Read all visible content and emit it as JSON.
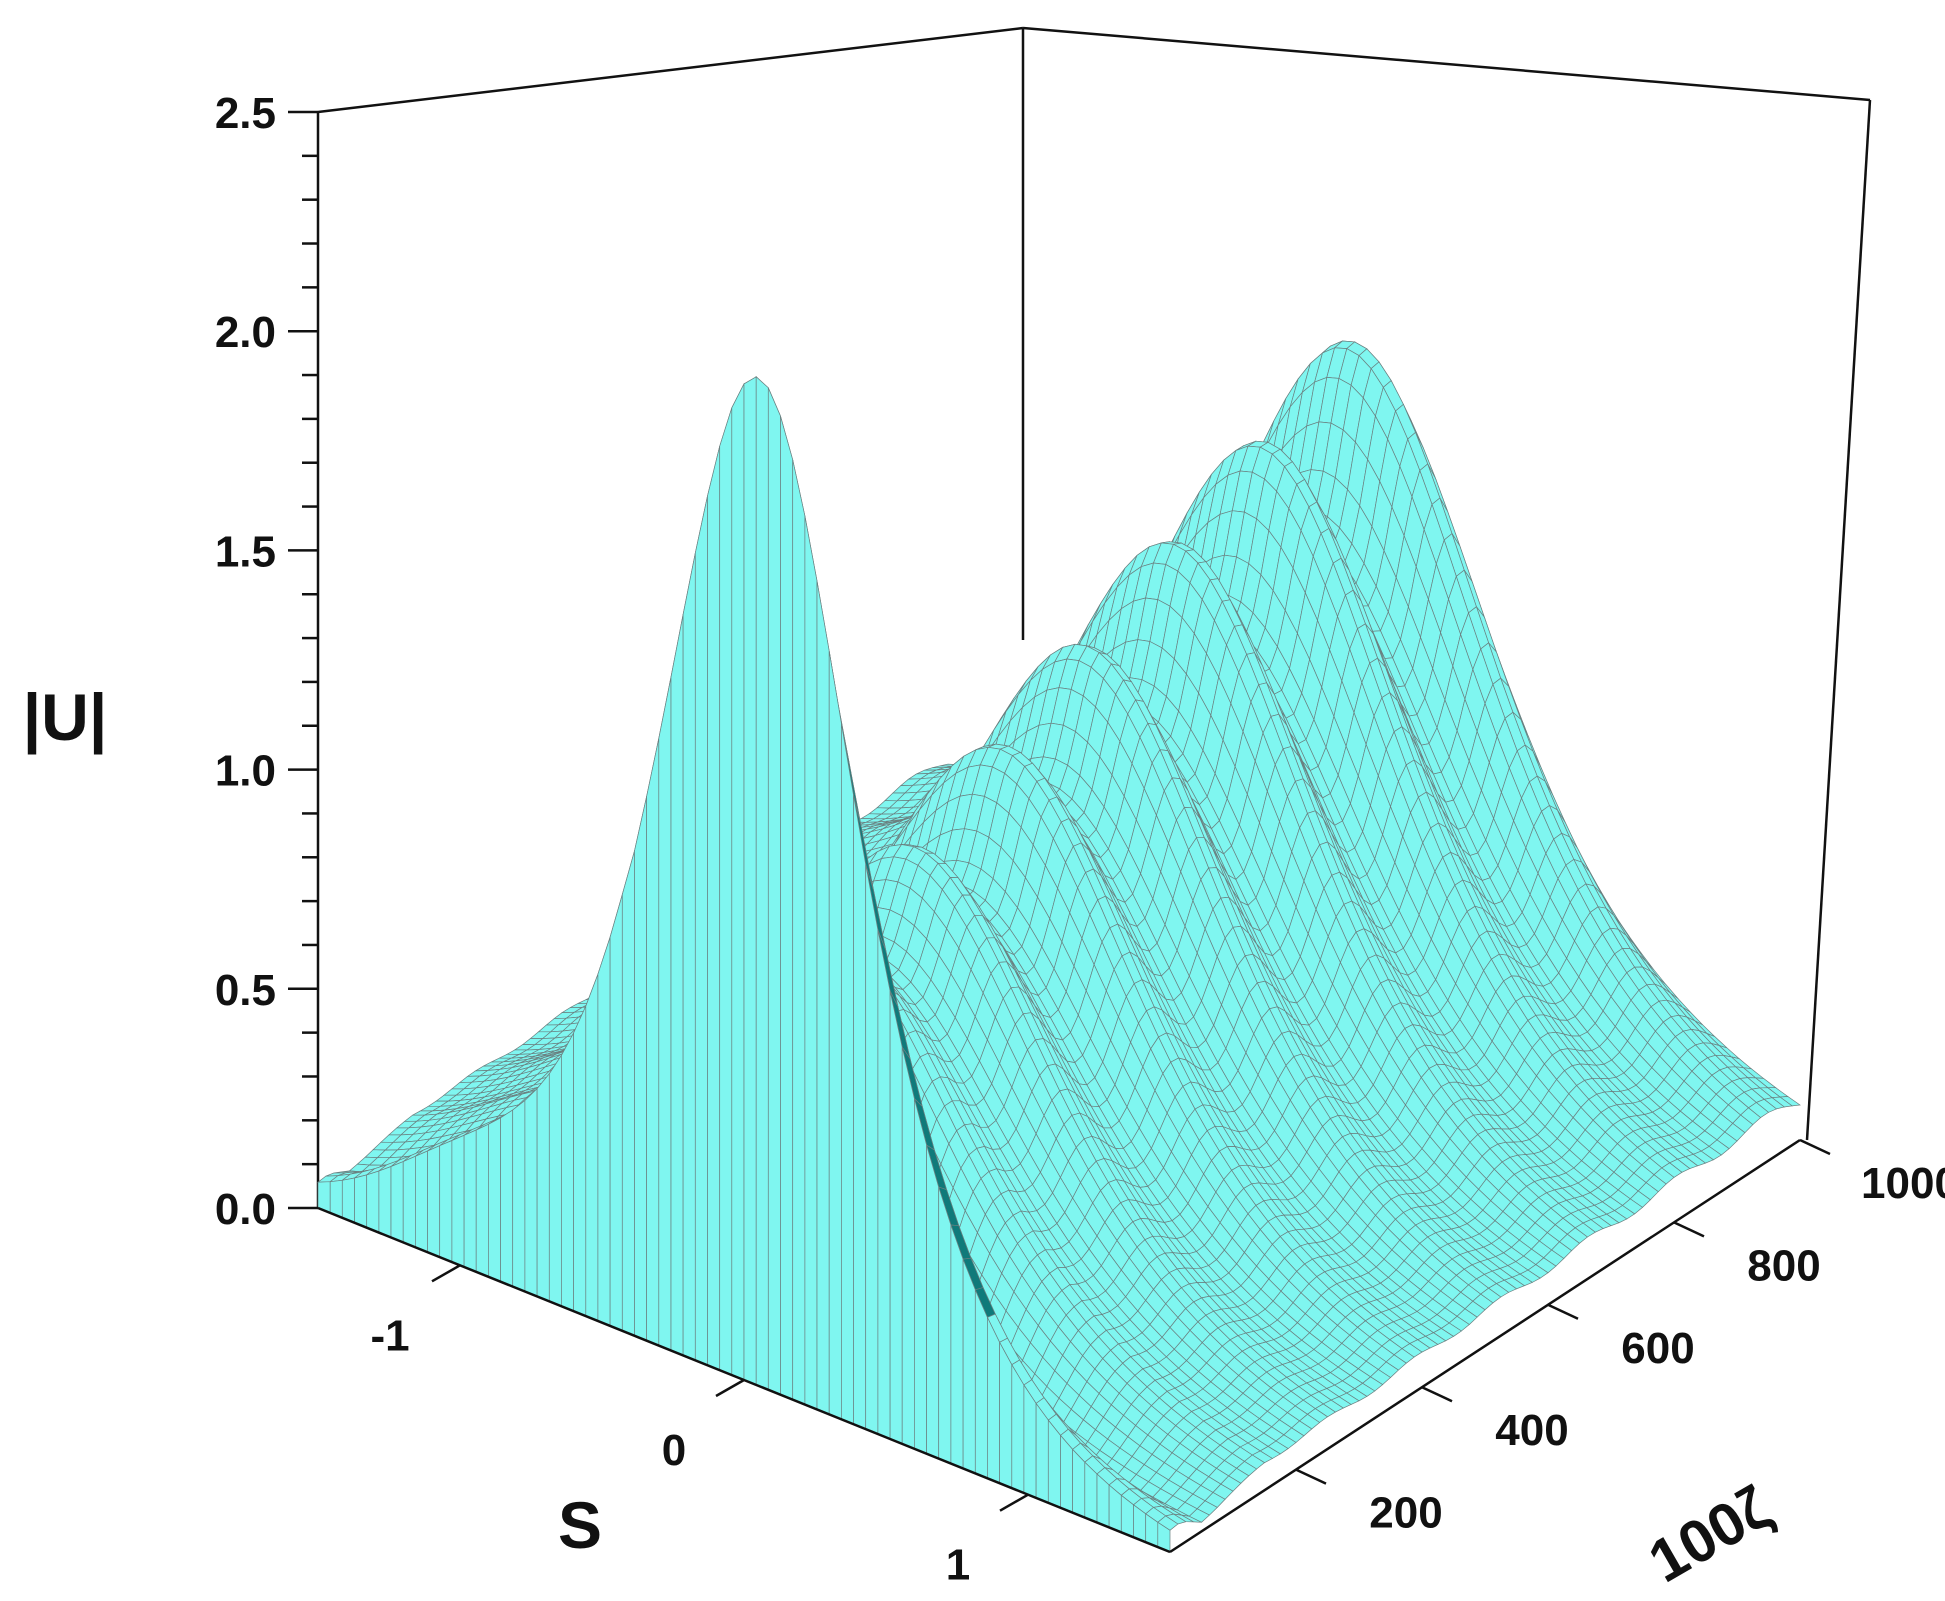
{
  "chart_data": {
    "type": "surface3d",
    "z_axis": {
      "label": "|U|",
      "range": [
        0,
        2.5
      ],
      "ticks": [
        0.0,
        0.5,
        1.0,
        1.5,
        2.0,
        2.5
      ],
      "tick_labels": [
        "0.0",
        "0.5",
        "1.0",
        "1.5",
        "2.0",
        "2.5"
      ]
    },
    "s_axis": {
      "label": "S",
      "range": [
        -1.5,
        1.5
      ],
      "ticks": [
        -1,
        0,
        1
      ],
      "tick_labels": [
        "-1",
        "0",
        "1"
      ]
    },
    "zeta_axis": {
      "label": "100ζ",
      "range": [
        0,
        1000
      ],
      "ticks": [
        200,
        400,
        600,
        800,
        1000
      ],
      "tick_labels": [
        "200",
        "400",
        "600",
        "800",
        "1000"
      ]
    },
    "surface_color": "#7ff6f0",
    "surface_shade_color": "#0f7a7a",
    "mesh_color": "#6a8080",
    "peak_ridge": {
      "s": 0.05,
      "zeta": [
        0,
        120,
        250,
        390,
        525,
        665,
        805,
        945
      ],
      "peak_values": [
        2.3,
        1.35,
        1.42,
        1.48,
        1.55,
        1.62,
        1.68,
        1.75
      ]
    },
    "grid": false
  }
}
